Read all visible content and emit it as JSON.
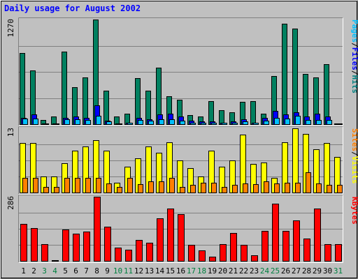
{
  "chart_data": {
    "type": "bar",
    "title": "Daily usage for August 2002",
    "categories": [
      "1",
      "2",
      "3",
      "4",
      "5",
      "6",
      "7",
      "8",
      "9",
      "10",
      "11",
      "12",
      "13",
      "14",
      "15",
      "16",
      "17",
      "18",
      "19",
      "20",
      "21",
      "22",
      "23",
      "24",
      "25",
      "26",
      "27",
      "28",
      "29",
      "30",
      "31"
    ],
    "weekend_days": [
      "3",
      "4",
      "10",
      "11",
      "17",
      "18",
      "24",
      "25",
      "31"
    ],
    "panels": [
      {
        "id": "hits",
        "ymax_label": "1270",
        "ylim": [
          0,
          1270
        ],
        "legend": [
          {
            "text": "Pages",
            "color": "#00c0ff"
          },
          {
            "text": "/",
            "color": "#000000"
          },
          {
            "text": "Files",
            "color": "#0000ff"
          },
          {
            "text": "/",
            "color": "#000000"
          },
          {
            "text": "Hits",
            "color": "#008080"
          }
        ],
        "series": [
          {
            "name": "Hits",
            "color": "#008060",
            "values": [
              860,
              650,
              50,
              90,
              880,
              450,
              570,
              1270,
              410,
              90,
              130,
              560,
              410,
              690,
              340,
              300,
              110,
              90,
              280,
              170,
              140,
              270,
              280,
              130,
              580,
              1220,
              1160,
              610,
              570,
              730,
              0
            ]
          },
          {
            "name": "Files",
            "color": "#0000ff",
            "values": [
              80,
              120,
              10,
              10,
              80,
              90,
              80,
              230,
              40,
              10,
              20,
              80,
              60,
              120,
              130,
              90,
              40,
              30,
              30,
              20,
              30,
              60,
              20,
              80,
              160,
              120,
              140,
              90,
              130,
              90,
              0
            ]
          },
          {
            "name": "Pages",
            "color": "#00c0ff",
            "values": [
              70,
              70,
              5,
              5,
              60,
              60,
              50,
              100,
              30,
              10,
              15,
              50,
              40,
              60,
              60,
              40,
              20,
              20,
              20,
              15,
              20,
              30,
              15,
              40,
              80,
              70,
              100,
              50,
              50,
              50,
              0
            ]
          }
        ]
      },
      {
        "id": "visits",
        "ymax_label": "13",
        "ylim": [
          0,
          13
        ],
        "legend": [
          {
            "text": "Sites",
            "color": "#ff8000"
          },
          {
            "text": "/",
            "color": "#000000"
          },
          {
            "text": "Visits",
            "color": "#ffff00"
          }
        ],
        "series": [
          {
            "name": "Visits",
            "color": "#ffff00",
            "values": [
              10,
              10,
              3.2,
              3.2,
              6,
              8.5,
              9.3,
              10.6,
              8.5,
              2,
              5.2,
              6.9,
              9.3,
              8,
              10.2,
              6.5,
              5,
              3.2,
              8.5,
              5.2,
              6.5,
              11.7,
              5.8,
              6.1,
              3,
              10.2,
              13,
              11.8,
              8.7,
              10.1,
              7.2
            ]
          },
          {
            "name": "Sites",
            "color": "#ff8000",
            "values": [
              3,
              3,
              1.2,
              1.2,
              3,
              3,
              3,
              3,
              1.9,
              1.2,
              3,
              1.7,
              2.2,
              2.2,
              3,
              1.2,
              1.5,
              2,
              2,
              1.2,
              1.6,
              1.8,
              1.7,
              2.2,
              1.8,
              2,
              2,
              4.1,
              1.8,
              1.6,
              1.6
            ]
          }
        ]
      },
      {
        "id": "kbytes",
        "ymax_label": "286",
        "ylim": [
          0,
          286
        ],
        "legend": [
          {
            "text": "KBytes",
            "color": "#ff0000"
          }
        ],
        "series": [
          {
            "name": "KBytes",
            "color": "#ff0000",
            "values": [
              166,
              145,
              75,
              4,
              141,
              122,
              130,
              286,
              151,
              60,
              49,
              94,
              81,
              190,
              233,
              208,
              70,
              48,
              20,
              75,
              125,
              72,
              25,
              133,
              256,
              135,
              179,
              98,
              233,
              74,
              75
            ]
          }
        ]
      }
    ]
  }
}
